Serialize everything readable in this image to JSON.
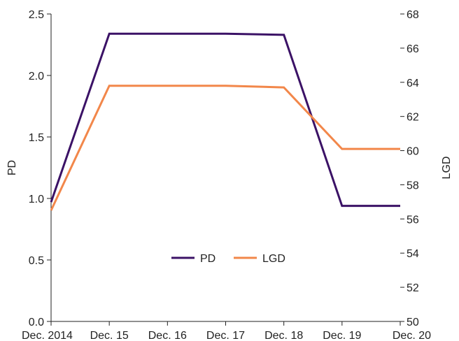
{
  "chart_data": {
    "type": "line",
    "categories": [
      "Dec. 2014",
      "Dec. 15",
      "Dec. 16",
      "Dec. 17",
      "Dec. 18",
      "Dec. 19",
      "Dec. 20"
    ],
    "series": [
      {
        "name": "PD",
        "axis": "left",
        "color": "#3b1266",
        "values": [
          0.97,
          2.34,
          2.34,
          2.34,
          2.33,
          0.94,
          0.94
        ]
      },
      {
        "name": "LGD",
        "axis": "right",
        "color": "#f2874a",
        "values": [
          56.5,
          63.8,
          63.8,
          63.8,
          63.7,
          60.1,
          60.1
        ]
      }
    ],
    "y_left": {
      "label": "PD",
      "lim": [
        0,
        2.5
      ],
      "ticks": [
        0.0,
        0.5,
        1.0,
        1.5,
        2.0,
        2.5
      ],
      "tick_labels": [
        "0.0",
        "0.5",
        "1.0",
        "1.5",
        "2.0",
        "2.5"
      ]
    },
    "y_right": {
      "label": "LGD",
      "lim": [
        50,
        68
      ],
      "ticks": [
        50,
        52,
        54,
        56,
        58,
        60,
        62,
        64,
        66,
        68
      ],
      "tick_labels": [
        "50",
        "52",
        "54",
        "56",
        "58",
        "60",
        "62",
        "64",
        "66",
        "68"
      ]
    },
    "legend": {
      "placement": "center",
      "entries": [
        "PD",
        "LGD"
      ]
    },
    "grid": false
  }
}
